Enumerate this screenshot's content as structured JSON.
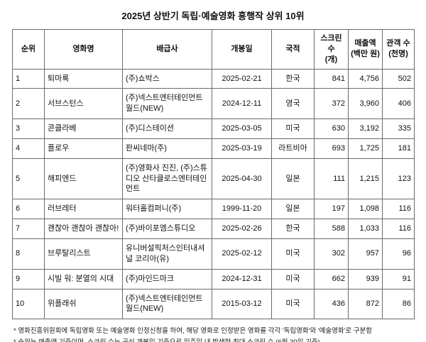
{
  "chart_data": {
    "type": "table",
    "title": "2025년 상반기 독립·예술영화 흥행작 상위 10위",
    "columns": [
      "순위",
      "영화명",
      "배급사",
      "개봉일",
      "국적",
      "스크린 수\n(개)",
      "매출액\n(백만 원)",
      "관객 수\n(천명)"
    ],
    "column_keys": [
      "rank",
      "film_title",
      "distributor",
      "release_date",
      "country",
      "screen_count",
      "revenue_million_won",
      "audience_thousands"
    ],
    "rows": [
      [
        "1",
        "퇴마록",
        "(주)쇼박스",
        "2025-02-21",
        "한국",
        "841",
        "4,756",
        "502"
      ],
      [
        "2",
        "서브스턴스",
        "(주)넥스트엔터테인먼트월드(NEW)",
        "2024-12-11",
        "영국",
        "372",
        "3,960",
        "406"
      ],
      [
        "3",
        "콘클라베",
        "(주)디스테이션",
        "2025-03-05",
        "미국",
        "630",
        "3,192",
        "335"
      ],
      [
        "4",
        "플로우",
        "판씨네마(주)",
        "2025-03-19",
        "라트비아",
        "693",
        "1,725",
        "181"
      ],
      [
        "5",
        "해피엔드",
        "(주)영화사 진진, (주)스튜디오 산타클로스엔터테인먼트",
        "2025-04-30",
        "일본",
        "111",
        "1,215",
        "123"
      ],
      [
        "6",
        "러브레터",
        "워터홀컴퍼니(주)",
        "1999-11-20",
        "일본",
        "197",
        "1,098",
        "116"
      ],
      [
        "7",
        "괜찮아 괜찮아 괜찮아!",
        "(주)바이포엠스튜디오",
        "2025-02-26",
        "한국",
        "588",
        "1,033",
        "116"
      ],
      [
        "8",
        "브루탈리스트",
        "유니버설픽처스인터내셔널 코리아(유)",
        "2025-02-12",
        "미국",
        "302",
        "957",
        "96"
      ],
      [
        "9",
        "시빌 워: 분열의 시대",
        "(주)마인드마크",
        "2024-12-31",
        "미국",
        "662",
        "939",
        "91"
      ],
      [
        "10",
        "위플래쉬",
        "(주)넥스트엔터테인먼트월드(NEW)",
        "2015-03-12",
        "미국",
        "436",
        "872",
        "86"
      ]
    ]
  },
  "footnotes": [
    "* 영화진흥위원회에 독립영화 또는 예술영화 인정신청을 하여, 해당 영화로 인정받은 영화를 각각 '독립영화'와 '예술영화'로 구분함",
    "* 순위는 매출액 기준이며, 스크린 수는 공식 개봉일 기준으로 일주일 내 발생한 최대 스크린 수 (6월 30일 기준)",
    "* 영화관입장권통합전산망 가동(2004년) 이전 개봉한 영화의 스크린 수는 재개봉 기간 중 최다 스크린 수"
  ]
}
